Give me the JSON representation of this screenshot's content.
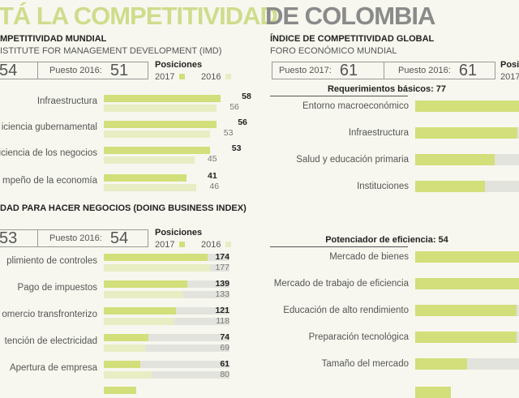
{
  "title": {
    "part1": "TÁ LA COMPETITIVIDAD",
    "part2": "DE COLOMBIA",
    "color1": "#cfdc8c",
    "color2": "#8a8a8a"
  },
  "colors": {
    "y2017": "#d2df7a",
    "y2016": "#e8edc4",
    "track": "#e3e3de"
  },
  "chart_data": [
    {
      "type": "bar",
      "title": "MPETITIVIDAD MUNDIAL",
      "subtitle": "ISTITUTE FOR MANAGEMENT DEVELOPMENT (IMD)",
      "box1_value": "54",
      "box2_label": "Puesto 2016:",
      "box2_value": "51",
      "legend": {
        "title": "Posiciones",
        "items": [
          "2017",
          "2016"
        ]
      },
      "categories": [
        "Infraestructura",
        "iciencia gubernamental",
        "iciencia de los negocios",
        "mpeño de la economía"
      ],
      "series": [
        {
          "name": "2017",
          "values": [
            58,
            56,
            53,
            41
          ]
        },
        {
          "name": "2016",
          "values": [
            56,
            53,
            45,
            46
          ]
        }
      ]
    },
    {
      "type": "bar",
      "title": "DAD PARA HACER NEGOCIOS (DOING BUSINESS INDEX)",
      "box1_value": "53",
      "box2_label": "Puesto 2016:",
      "box2_value": "54",
      "legend": {
        "title": "Posiciones",
        "items": [
          "2017",
          "2016"
        ]
      },
      "categories": [
        "plimiento de controles",
        "Pago de impuestos",
        "omercio transfronterizo",
        "tención de electricidad",
        "Apertura de empresa"
      ],
      "series": [
        {
          "name": "2017",
          "values": [
            174,
            139,
            121,
            74,
            61
          ]
        },
        {
          "name": "2016",
          "values": [
            177,
            133,
            118,
            69,
            80
          ]
        }
      ]
    },
    {
      "type": "bar",
      "title": "ÍNDICE DE COMPETITIVIDAD GLOBAL",
      "subtitle": "FORO ECONÓMICO MUNDIAL",
      "box1_label": "Puesto 2017:",
      "box1_value": "61",
      "box2_label": "Puesto 2016:",
      "box2_value": "61",
      "legend": {
        "title": "Posi",
        "items": [
          "2017"
        ]
      },
      "groups": [
        {
          "title": "Requerimientos básicos: 77",
          "categories": [
            "Entorno macroeconómico",
            "Infraestructura",
            "Salud y educación primaria",
            "Instituciones"
          ]
        },
        {
          "title": "Potenciador de eficiencia: 54",
          "categories": [
            "Mercado de bienes",
            "Mercado de trabajo de eficiencia",
            "Educación de alto rendimiento",
            "Preparación tecnológica",
            "Tamaño del mercado"
          ]
        }
      ]
    }
  ]
}
